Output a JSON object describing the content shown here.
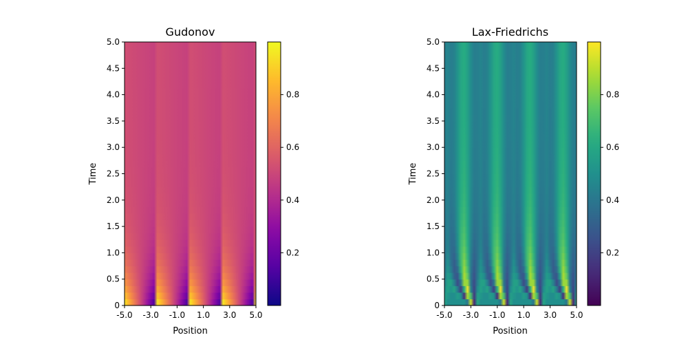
{
  "chart_data": [
    {
      "type": "heatmap",
      "title": "Gudonov",
      "xlabel": "Position",
      "ylabel": "Time",
      "xlim": [
        -5.0,
        5.0
      ],
      "ylim": [
        0.0,
        5.0
      ],
      "xticks": [
        "-5.0",
        "-3.0",
        "-1.0",
        "1.0",
        "3.0",
        "5.0"
      ],
      "yticks": [
        "0",
        "0.5",
        "1.0",
        "1.5",
        "2.0",
        "2.5",
        "3.0",
        "3.5",
        "4.0",
        "4.5",
        "5.0"
      ],
      "colormap": "plasma",
      "colorbar_range": [
        0.0,
        1.0
      ],
      "colorbar_ticks": [
        "0.2",
        "0.4",
        "0.6",
        "0.8"
      ],
      "grid": false,
      "wave_period": 2.5,
      "scheme": "godunov"
    },
    {
      "type": "heatmap",
      "title": "Lax-Friedrichs",
      "xlabel": "Position",
      "ylabel": "Time",
      "xlim": [
        -5.0,
        5.0
      ],
      "ylim": [
        0.0,
        5.0
      ],
      "xticks": [
        "-5.0",
        "-3.0",
        "-1.0",
        "1.0",
        "3.0",
        "5.0"
      ],
      "yticks": [
        "0",
        "0.5",
        "1.0",
        "1.5",
        "2.0",
        "2.5",
        "3.0",
        "3.5",
        "4.0",
        "4.5",
        "5.0"
      ],
      "colormap": "viridis",
      "colorbar_range": [
        0.0,
        1.0
      ],
      "colorbar_ticks": [
        "0.2",
        "0.4",
        "0.6",
        "0.8"
      ],
      "grid": false,
      "wave_period": 2.5,
      "scheme": "lax-friedrichs"
    }
  ]
}
